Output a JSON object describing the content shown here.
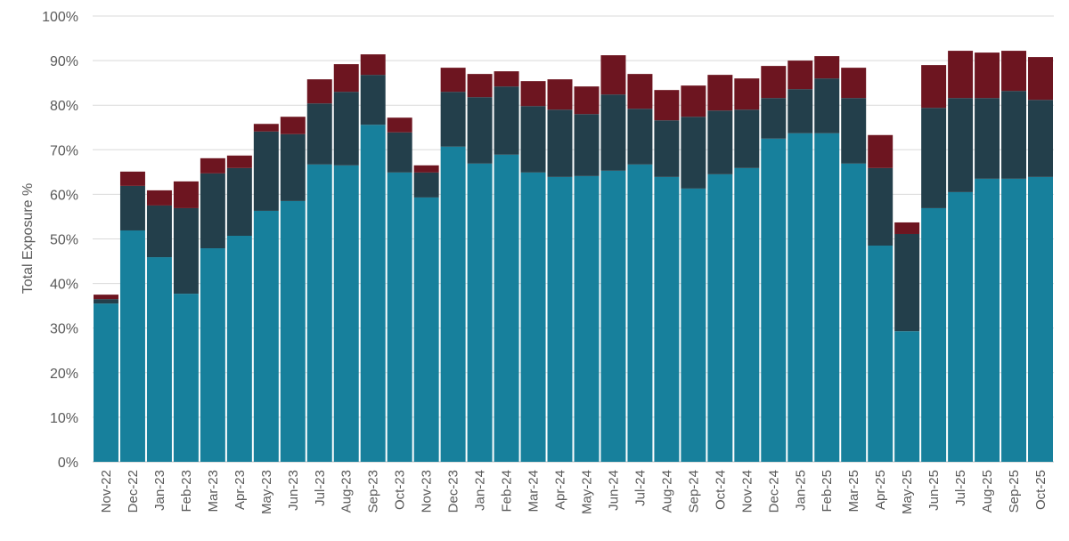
{
  "chart_data": {
    "type": "bar",
    "stacked": true,
    "title": "",
    "xlabel": "",
    "ylabel": "Total Exposure %",
    "ylim": [
      0,
      100
    ],
    "yticks": [
      "0%",
      "10%",
      "20%",
      "30%",
      "40%",
      "50%",
      "60%",
      "70%",
      "80%",
      "90%",
      "100%"
    ],
    "grid": true,
    "legend": "none",
    "categories": [
      "Nov-22",
      "Dec-22",
      "Jan-23",
      "Feb-23",
      "Mar-23",
      "Apr-23",
      "May-23",
      "Jun-23",
      "Jul-23",
      "Aug-23",
      "Sep-23",
      "Oct-23",
      "Nov-23",
      "Dec-23",
      "Jan-24",
      "Feb-24",
      "Mar-24",
      "Apr-24",
      "May-24",
      "Jun-24",
      "Jul-24",
      "Aug-24",
      "Sep-24",
      "Oct-24",
      "Nov-24",
      "Dec-24",
      "Jan-25",
      "Feb-25",
      "Mar-25",
      "Apr-25",
      "May-25",
      "Jun-25",
      "Jul-25",
      "Aug-25",
      "Sep-25",
      "Oct-25"
    ],
    "series": [
      {
        "color": "#17809c",
        "values": [
          35.5,
          51.9,
          45.9,
          37.7,
          47.9,
          50.7,
          56.3,
          58.5,
          66.7,
          66.5,
          75.6,
          64.9,
          59.3,
          70.7,
          66.9,
          68.9,
          64.9,
          63.9,
          64.1,
          65.3,
          66.7,
          63.9,
          61.3,
          64.5,
          65.9,
          72.5,
          73.7,
          73.7,
          66.9,
          48.5,
          29.3,
          56.9,
          60.5,
          63.5,
          63.5,
          63.9
        ]
      },
      {
        "color": "#233f4b",
        "values": [
          1.0,
          10.0,
          11.6,
          19.2,
          16.8,
          15.2,
          17.8,
          15.0,
          13.7,
          16.5,
          11.2,
          9.0,
          5.6,
          12.3,
          14.9,
          15.3,
          14.9,
          15.1,
          13.9,
          17.1,
          12.5,
          12.7,
          16.1,
          14.3,
          13.1,
          9.1,
          9.9,
          12.3,
          14.7,
          17.4,
          21.8,
          22.5,
          21.1,
          18.1,
          19.7,
          17.3
        ]
      },
      {
        "color": "#6d1520",
        "values": [
          1.0,
          3.2,
          3.4,
          6.0,
          3.4,
          2.8,
          1.7,
          3.9,
          5.4,
          6.2,
          4.6,
          3.3,
          1.6,
          5.4,
          5.2,
          3.4,
          5.6,
          6.8,
          6.2,
          8.8,
          7.8,
          6.8,
          7.0,
          8.0,
          7.0,
          7.2,
          6.4,
          5.0,
          6.8,
          7.4,
          2.6,
          9.6,
          10.6,
          10.2,
          9.0,
          9.6
        ]
      }
    ]
  }
}
